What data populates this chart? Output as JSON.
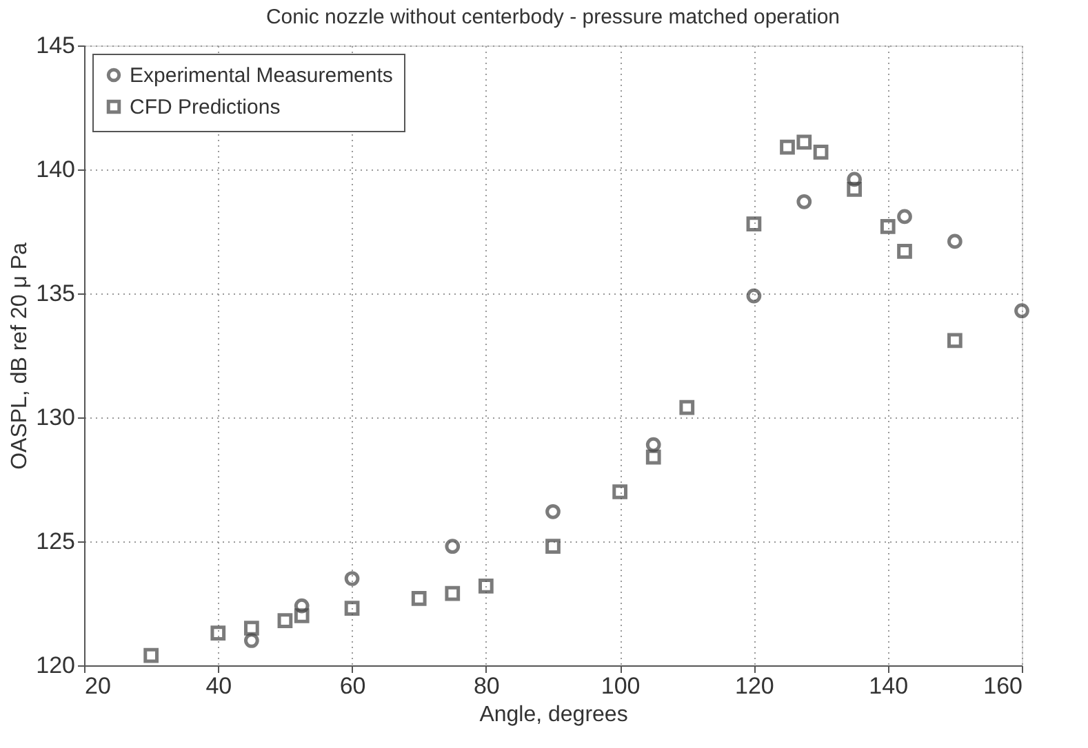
{
  "chart_data": {
    "type": "scatter",
    "title": "Conic nozzle without centerbody - pressure matched operation",
    "xlabel": "Angle, degrees",
    "ylabel": "OASPL, dB ref 20 μ Pa",
    "xlim": [
      20,
      160
    ],
    "xticks": [
      20,
      40,
      60,
      80,
      100,
      120,
      140,
      160
    ],
    "ylim": [
      120,
      145
    ],
    "yticks": [
      120,
      125,
      130,
      135,
      140,
      145
    ],
    "grid": true,
    "legend": "top left",
    "series": [
      {
        "name": "Experimental Measurements",
        "color": "#444444",
        "marker": "circle",
        "x": [
          45,
          52.5,
          60,
          75,
          90,
          105,
          120,
          127.5,
          135,
          142.5,
          150,
          160
        ],
        "values": [
          121.0,
          122.4,
          123.5,
          124.8,
          126.2,
          128.9,
          134.9,
          138.7,
          139.6,
          138.1,
          137.1,
          134.3
        ]
      },
      {
        "name": "CFD Predictions",
        "color": "#444444",
        "marker": "square",
        "x": [
          30,
          40,
          45,
          50,
          52.5,
          60,
          70,
          75,
          80,
          90,
          100,
          105,
          110,
          120,
          125,
          127.5,
          130,
          135,
          140,
          142.5,
          150
        ],
        "values": [
          120.4,
          121.3,
          121.5,
          121.8,
          122.0,
          122.3,
          122.7,
          122.9,
          123.2,
          124.8,
          127.0,
          128.4,
          130.4,
          137.8,
          140.9,
          141.1,
          140.7,
          139.2,
          137.7,
          136.7,
          133.1
        ]
      }
    ]
  }
}
